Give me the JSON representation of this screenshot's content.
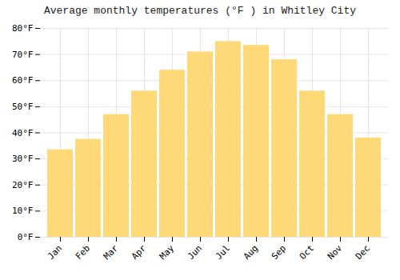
{
  "chart_data": {
    "type": "bar",
    "title": "Average monthly temperatures (°F ) in Whitley City",
    "categories": [
      "Jan",
      "Feb",
      "Mar",
      "Apr",
      "May",
      "Jun",
      "Jul",
      "Aug",
      "Sep",
      "Oct",
      "Nov",
      "Dec"
    ],
    "values": [
      33.5,
      37.5,
      47,
      56,
      64,
      71,
      75,
      73.5,
      68,
      56,
      47,
      38
    ],
    "color": "#FFD878",
    "ylim": [
      0,
      80
    ],
    "yticks": [
      {
        "value": 0,
        "label": "0°F"
      },
      {
        "value": 10,
        "label": "10°F"
      },
      {
        "value": 20,
        "label": "20°F"
      },
      {
        "value": 30,
        "label": "30°F"
      },
      {
        "value": 40,
        "label": "40°F"
      },
      {
        "value": 50,
        "label": "50°F"
      },
      {
        "value": 60,
        "label": "60°F"
      },
      {
        "value": 70,
        "label": "70°F"
      },
      {
        "value": 80,
        "label": "80°F"
      }
    ],
    "grid": true
  }
}
